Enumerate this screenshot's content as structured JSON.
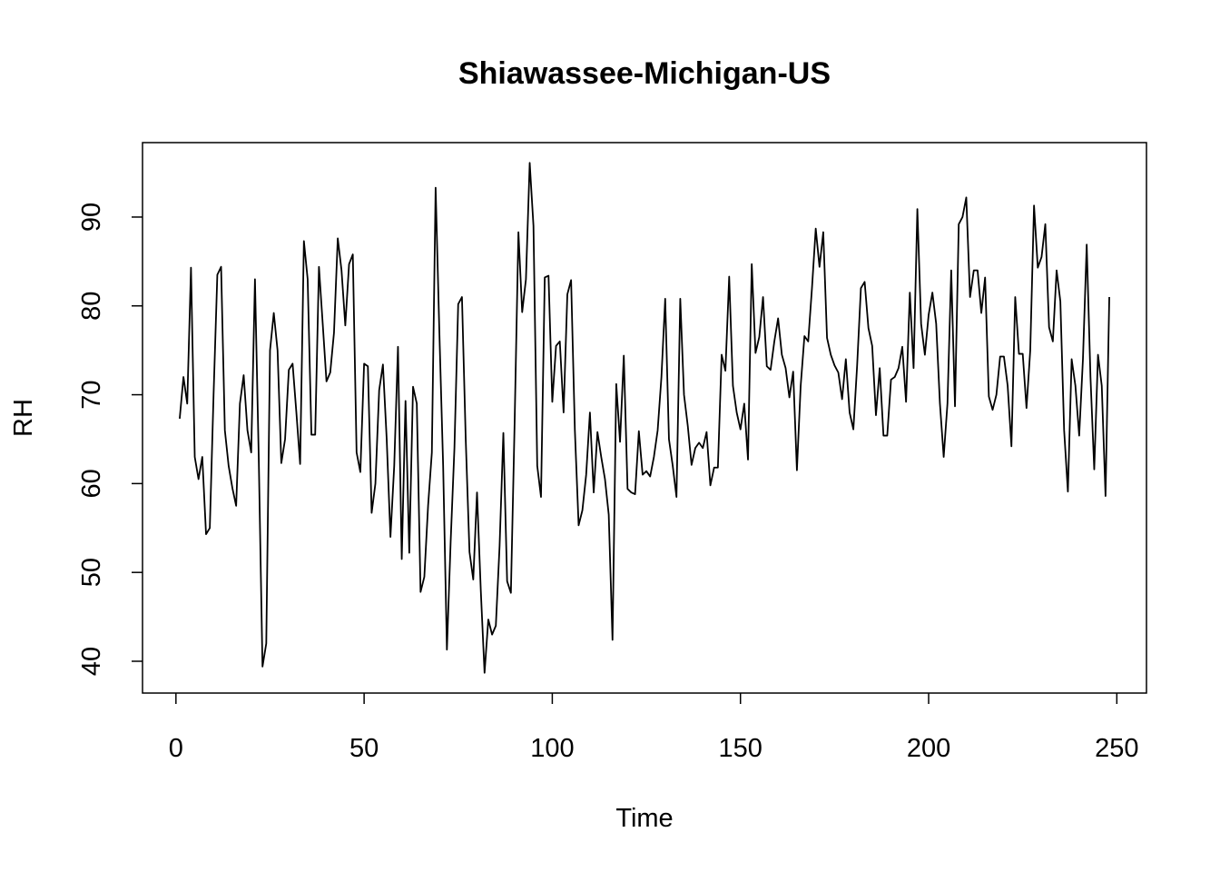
{
  "chart_data": {
    "type": "line",
    "title": "Shiawassee-Michigan-US",
    "x_label": "Time",
    "y_label": "RH",
    "x": [
      1,
      2,
      3,
      4,
      5,
      6,
      7,
      8,
      9,
      10,
      11,
      12,
      13,
      14,
      15,
      16,
      17,
      18,
      19,
      20,
      21,
      22,
      23,
      24,
      25,
      26,
      27,
      28,
      29,
      30,
      31,
      32,
      33,
      34,
      35,
      36,
      37,
      38,
      39,
      40,
      41,
      42,
      43,
      44,
      45,
      46,
      47,
      48,
      49,
      50,
      51,
      52,
      53,
      54,
      55,
      56,
      57,
      58,
      59,
      60,
      61,
      62,
      63,
      64,
      65,
      66,
      67,
      68,
      69,
      70,
      71,
      72,
      73,
      74,
      75,
      76,
      77,
      78,
      79,
      80,
      81,
      82,
      83,
      84,
      85,
      86,
      87,
      88,
      89,
      90,
      91,
      92,
      93,
      94,
      95,
      96,
      97,
      98,
      99,
      100,
      101,
      102,
      103,
      104,
      105,
      106,
      107,
      108,
      109,
      110,
      111,
      112,
      113,
      114,
      115,
      116,
      117,
      118,
      119,
      120,
      121,
      122,
      123,
      124,
      125,
      126,
      127,
      128,
      129,
      130,
      131,
      132,
      133,
      134,
      135,
      136,
      137,
      138,
      139,
      140,
      141,
      142,
      143,
      144,
      145,
      146,
      147,
      148,
      149,
      150,
      151,
      152,
      153,
      154,
      155,
      156,
      157,
      158,
      159,
      160,
      161,
      162,
      163,
      164,
      165,
      166,
      167,
      168,
      169,
      170,
      171,
      172,
      173,
      174,
      175,
      176,
      177,
      178,
      179,
      180,
      181,
      182,
      183,
      184,
      185,
      186,
      187,
      188,
      189,
      190,
      191,
      192,
      193,
      194,
      195,
      196,
      197,
      198,
      199,
      200,
      201,
      202,
      203,
      204,
      205,
      206,
      207,
      208,
      209,
      210,
      211,
      212,
      213,
      214,
      215,
      216,
      217,
      218,
      219,
      220,
      221,
      222,
      223,
      224,
      225,
      226,
      227,
      228,
      229,
      230,
      231,
      232,
      233,
      234,
      235,
      236,
      237,
      238,
      239,
      240,
      241,
      242,
      243,
      244,
      245,
      246,
      247,
      248
    ],
    "values": [
      67.3,
      72,
      69,
      84.3,
      63,
      60.5,
      63,
      54.3,
      55,
      70,
      83.5,
      84.4,
      66,
      62,
      59.5,
      57.5,
      69,
      72.2,
      66,
      63.5,
      83,
      63,
      39.4,
      42,
      75,
      79.2,
      75,
      62.3,
      65,
      72.8,
      73.5,
      68,
      62.2,
      87.3,
      83,
      65.5,
      65.5,
      84.4,
      78,
      71.5,
      72.5,
      77,
      87.6,
      84,
      77.8,
      84.7,
      85.8,
      63.5,
      61.3,
      73.5,
      73.2,
      56.7,
      60,
      70.5,
      73.4,
      65,
      54,
      62,
      75.4,
      51.5,
      69.3,
      52.2,
      70.9,
      69,
      47.8,
      49.5,
      57.5,
      63.5,
      93.3,
      77,
      62,
      41.3,
      53.5,
      64,
      80.2,
      81,
      65,
      52.3,
      49.2,
      59,
      48,
      38.7,
      44.7,
      43,
      44,
      53,
      65.7,
      49,
      47.7,
      67,
      88.3,
      79.3,
      83,
      96.1,
      89,
      62,
      58.5,
      83.2,
      83.4,
      69.2,
      75.5,
      76,
      68,
      81.3,
      82.9,
      66,
      55.3,
      57,
      61,
      68,
      59,
      65.8,
      63,
      60.5,
      56.5,
      42.4,
      71.2,
      64.7,
      74.4,
      59.4,
      59,
      58.8,
      65.9,
      61,
      61.4,
      60.8,
      63,
      66,
      72,
      80.8,
      65,
      62,
      58.5,
      80.8,
      70,
      66.5,
      62.1,
      64,
      64.6,
      64,
      65.8,
      59.8,
      61.8,
      61.8,
      74.5,
      72.7,
      83.3,
      71,
      68,
      66.1,
      69,
      62.7,
      84.7,
      74.7,
      76.5,
      81,
      73.2,
      72.8,
      76,
      78.6,
      74.5,
      73,
      69.7,
      72.6,
      61.5,
      71,
      76.6,
      76,
      82,
      88.7,
      84.4,
      88.3,
      76.4,
      74.5,
      73.3,
      72.5,
      69.5,
      74,
      68,
      66.1,
      73.3,
      82,
      82.7,
      77.5,
      75.5,
      67.7,
      73,
      65.4,
      65.4,
      71.7,
      72,
      73,
      75.4,
      69.2,
      81.5,
      73,
      90.9,
      78,
      74.5,
      79,
      81.5,
      78,
      69,
      63,
      69,
      84,
      68.7,
      89.2,
      90,
      92.2,
      81,
      84,
      84,
      79.2,
      83.2,
      69.8,
      68.3,
      70,
      74.3,
      74.3,
      71,
      64.2,
      81,
      74.6,
      74.6,
      68.5,
      75,
      91.3,
      84.3,
      85.5,
      89.2,
      77.6,
      76,
      84,
      80.5,
      66,
      59.1,
      74,
      71,
      65.4,
      74,
      86.9,
      72,
      61.6,
      74.5,
      71,
      58.6,
      81
    ],
    "color": "#000000",
    "xlim": [
      -8.88,
      257.88
    ],
    "ylim": [
      36.42,
      98.38
    ],
    "xticks": [
      0,
      50,
      100,
      150,
      200,
      250
    ],
    "yticks": [
      40,
      50,
      60,
      70,
      80,
      90
    ]
  }
}
